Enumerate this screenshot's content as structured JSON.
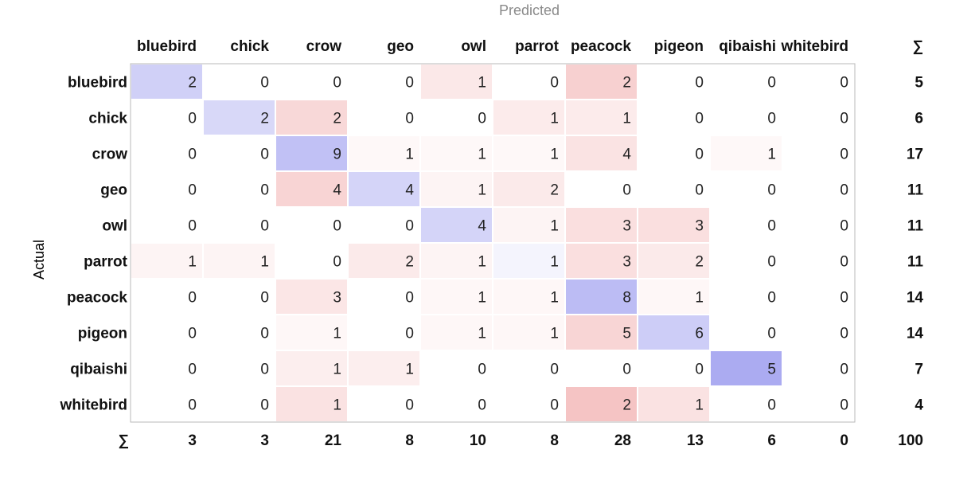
{
  "chart_data": {
    "type": "heatmap",
    "xlabel": "Predicted",
    "ylabel": "Actual",
    "sum_symbol": "∑",
    "classes": [
      "bluebird",
      "chick",
      "crow",
      "geo",
      "owl",
      "parrot",
      "peacock",
      "pigeon",
      "qibaishi",
      "whitebird"
    ],
    "matrix": [
      [
        2,
        0,
        0,
        0,
        1,
        0,
        2,
        0,
        0,
        0
      ],
      [
        0,
        2,
        2,
        0,
        0,
        1,
        1,
        0,
        0,
        0
      ],
      [
        0,
        0,
        9,
        1,
        1,
        1,
        4,
        0,
        1,
        0
      ],
      [
        0,
        0,
        4,
        4,
        1,
        2,
        0,
        0,
        0,
        0
      ],
      [
        0,
        0,
        0,
        0,
        4,
        1,
        3,
        3,
        0,
        0
      ],
      [
        1,
        1,
        0,
        2,
        1,
        1,
        3,
        2,
        0,
        0
      ],
      [
        0,
        0,
        3,
        0,
        1,
        1,
        8,
        1,
        0,
        0
      ],
      [
        0,
        0,
        1,
        0,
        1,
        1,
        5,
        6,
        0,
        0
      ],
      [
        0,
        0,
        1,
        1,
        0,
        0,
        0,
        0,
        5,
        0
      ],
      [
        0,
        0,
        1,
        0,
        0,
        0,
        2,
        1,
        0,
        0
      ]
    ],
    "row_sums": [
      5,
      6,
      17,
      11,
      11,
      11,
      14,
      14,
      7,
      4
    ],
    "col_sums": [
      3,
      3,
      21,
      8,
      10,
      8,
      28,
      13,
      6,
      0
    ],
    "total": 100,
    "colors": {
      "correct": "#9999ee",
      "error": "#ee9999",
      "border": "#b8b8b8",
      "text": "#222222"
    }
  }
}
